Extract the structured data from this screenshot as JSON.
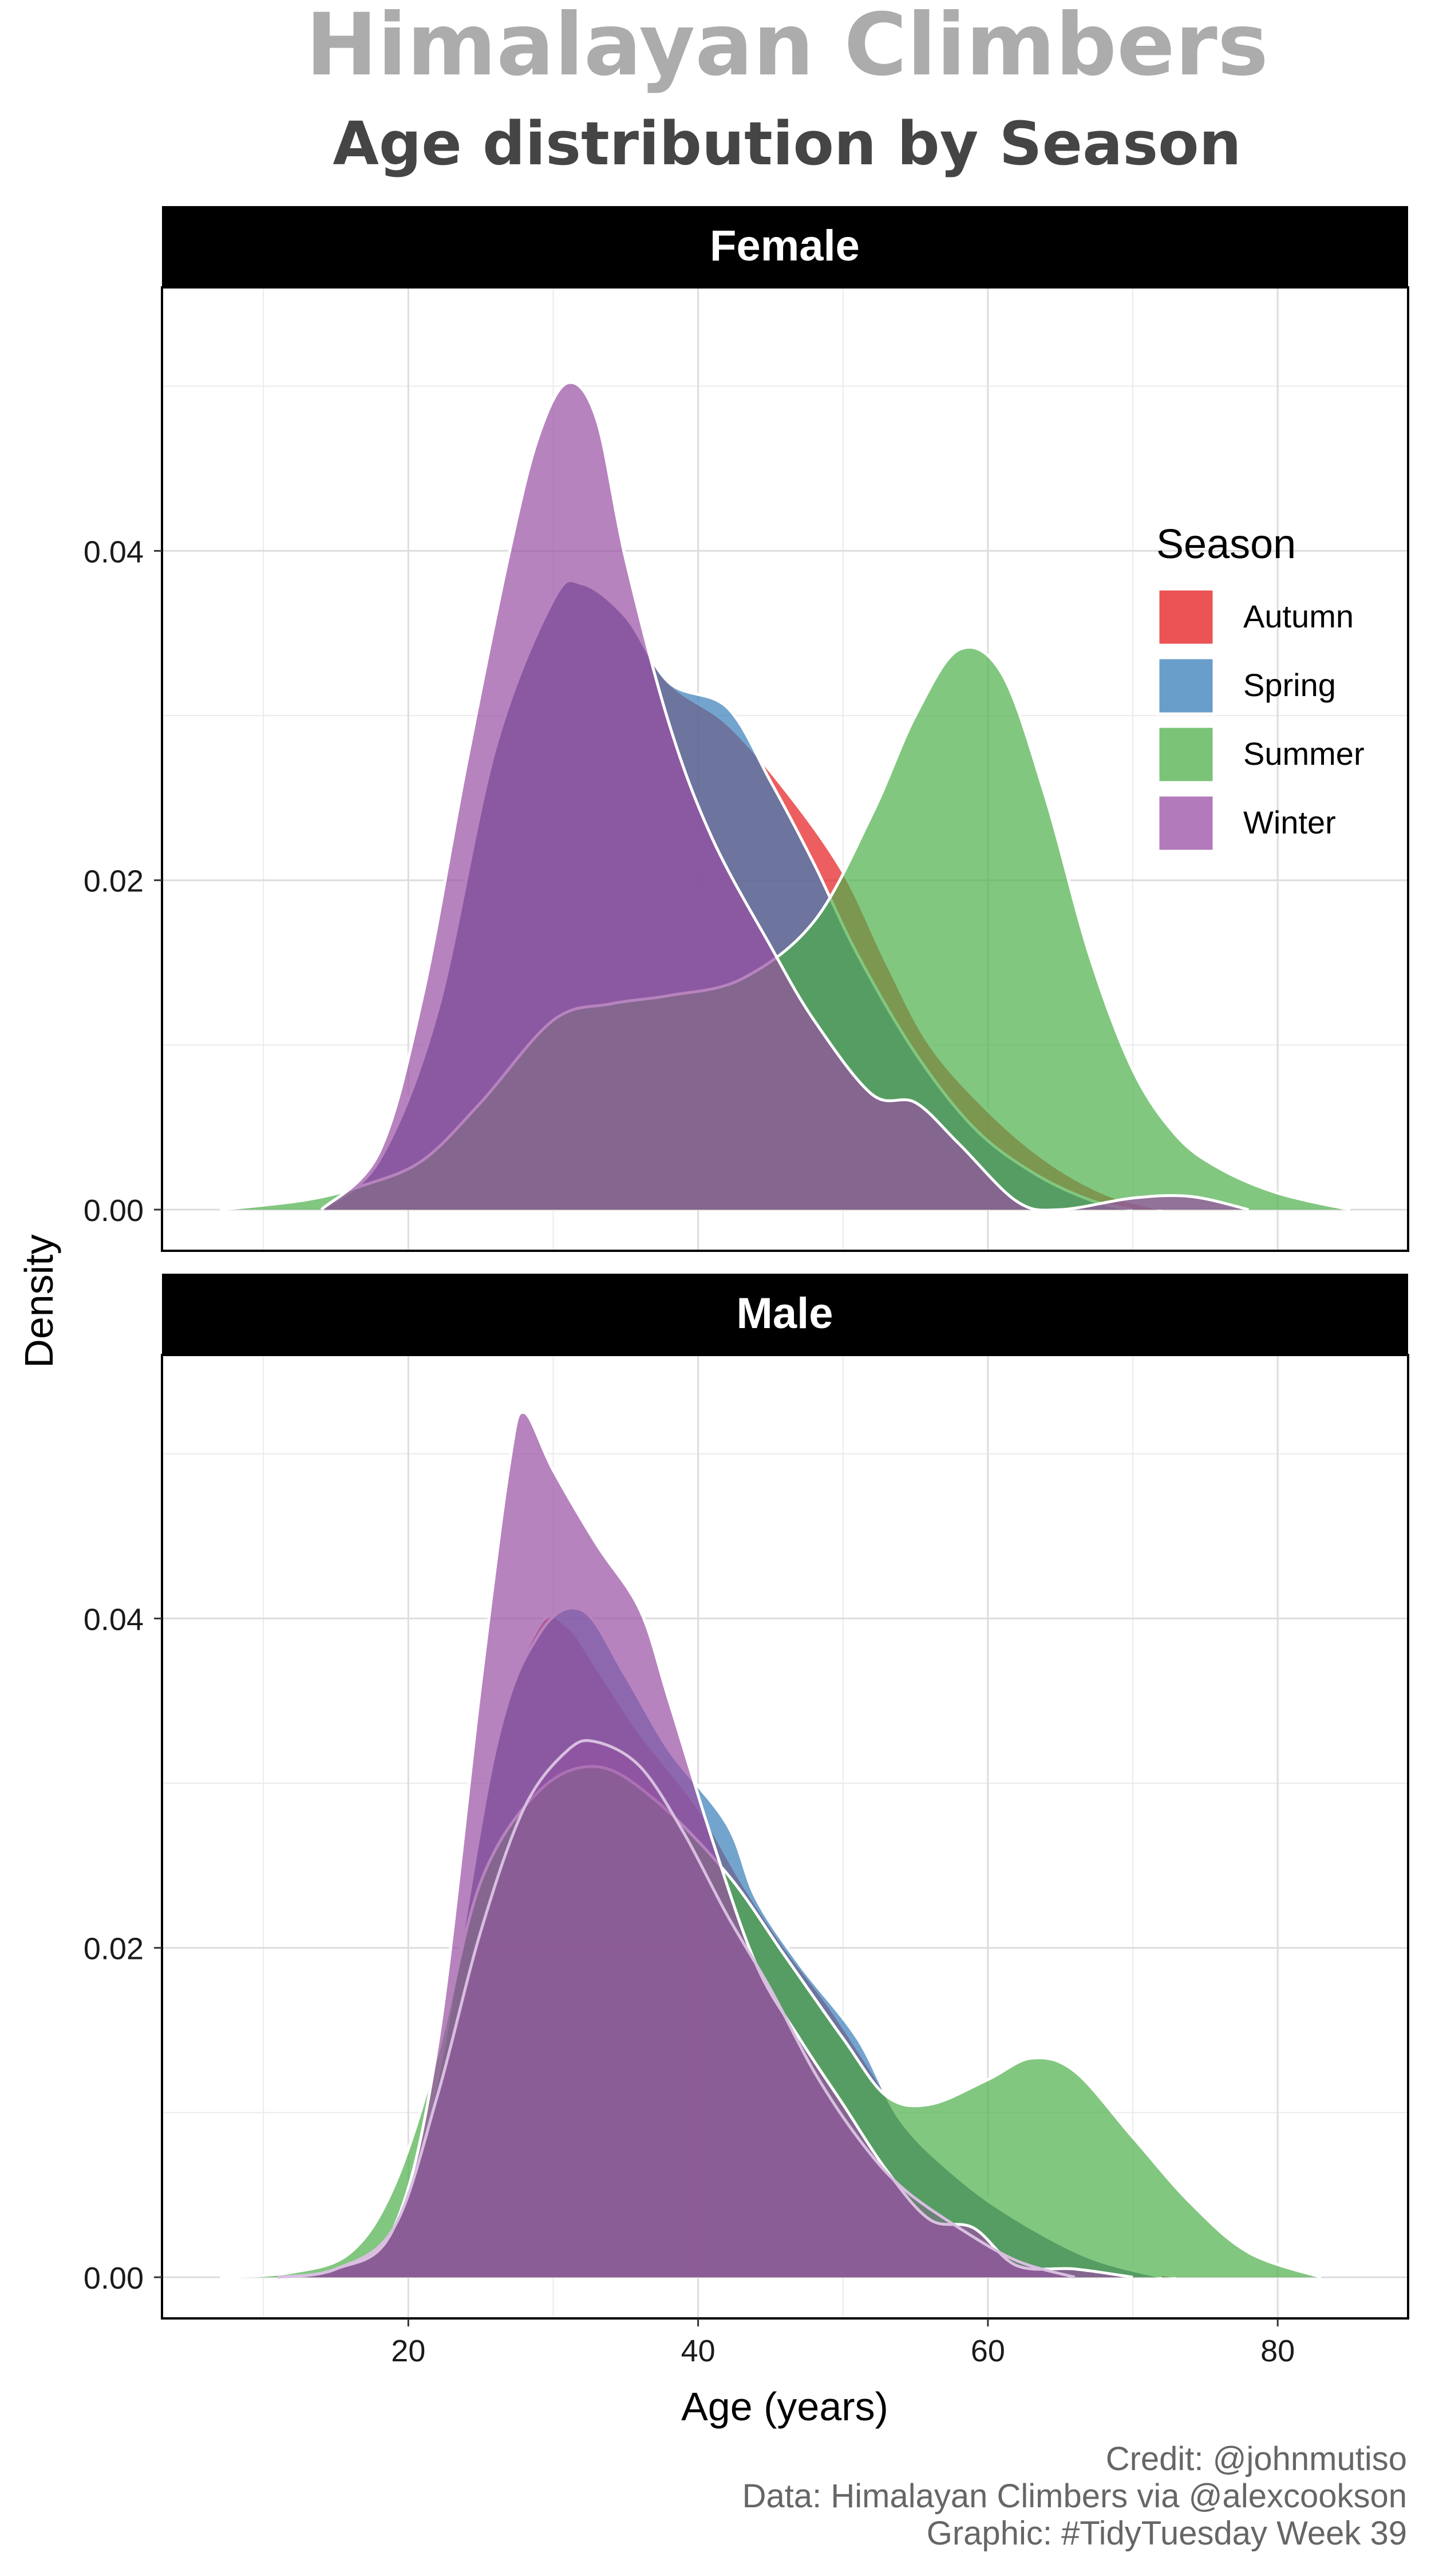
{
  "chart_data": {
    "type": "area",
    "title": "Himalayan Climbers",
    "subtitle": "Age distribution by Season",
    "xlabel": "Age (years)",
    "ylabel": "Density",
    "xlim": [
      3,
      89
    ],
    "x_ticks": [
      "20",
      "40",
      "60",
      "80"
    ],
    "y_ticks": [
      "0.00",
      "0.02",
      "0.04"
    ],
    "grid": true,
    "legend": {
      "title": "Season",
      "placement": "right-inside-top-facet",
      "entries": [
        "Autumn",
        "Spring",
        "Summer",
        "Winter"
      ]
    },
    "colors": {
      "Autumn": "#E41A1C",
      "Spring": "#377EB8",
      "Summer": "#4DAF4A",
      "Winter": "#984EA3"
    },
    "facets": [
      {
        "label": "Female",
        "ylim": [
          -0.0025,
          0.056
        ],
        "series": [
          {
            "name": "Autumn",
            "points": [
              [
                14,
                0
              ],
              [
                18,
                0.003
              ],
              [
                22,
                0.012
              ],
              [
                26,
                0.028
              ],
              [
                30,
                0.037
              ],
              [
                32,
                0.038
              ],
              [
                35,
                0.036
              ],
              [
                38,
                0.032
              ],
              [
                42,
                0.0295
              ],
              [
                46,
                0.0255
              ],
              [
                50,
                0.0205
              ],
              [
                53,
                0.015
              ],
              [
                56,
                0.01
              ],
              [
                60,
                0.006
              ],
              [
                64,
                0.003
              ],
              [
                68,
                0.001
              ],
              [
                72,
                0
              ]
            ]
          },
          {
            "name": "Spring",
            "points": [
              [
                14,
                0
              ],
              [
                18,
                0.003
              ],
              [
                22,
                0.012
              ],
              [
                26,
                0.028
              ],
              [
                30,
                0.037
              ],
              [
                32,
                0.038
              ],
              [
                35,
                0.036
              ],
              [
                38,
                0.032
              ],
              [
                42,
                0.0305
              ],
              [
                45,
                0.026
              ],
              [
                48,
                0.021
              ],
              [
                51,
                0.0155
              ],
              [
                55,
                0.0095
              ],
              [
                59,
                0.005
              ],
              [
                63,
                0.0023
              ],
              [
                67,
                0.0006
              ],
              [
                70,
                0
              ]
            ]
          },
          {
            "name": "Summer",
            "points": [
              [
                7,
                0
              ],
              [
                13,
                0.0006
              ],
              [
                17,
                0.0015
              ],
              [
                21,
                0.003
              ],
              [
                25,
                0.0065
              ],
              [
                30,
                0.0115
              ],
              [
                34,
                0.0125
              ],
              [
                38,
                0.013
              ],
              [
                43,
                0.014
              ],
              [
                48,
                0.0175
              ],
              [
                52,
                0.024
              ],
              [
                55,
                0.03
              ],
              [
                58,
                0.034
              ],
              [
                61,
                0.0325
              ],
              [
                64,
                0.025
              ],
              [
                67,
                0.0155
              ],
              [
                70,
                0.0085
              ],
              [
                73,
                0.0045
              ],
              [
                76,
                0.0025
              ],
              [
                80,
                0.001
              ],
              [
                85,
                0
              ]
            ]
          },
          {
            "name": "Winter",
            "points": [
              [
                14,
                0
              ],
              [
                18,
                0.0035
              ],
              [
                21,
                0.013
              ],
              [
                24,
                0.027
              ],
              [
                27,
                0.04
              ],
              [
                29,
                0.047
              ],
              [
                31,
                0.0502
              ],
              [
                33,
                0.048
              ],
              [
                35,
                0.0395
              ],
              [
                38,
                0.0295
              ],
              [
                41,
                0.0225
              ],
              [
                45,
                0.016
              ],
              [
                48,
                0.0115
              ],
              [
                52,
                0.007
              ],
              [
                55,
                0.0065
              ],
              [
                58,
                0.004
              ],
              [
                62,
                0.0005
              ],
              [
                65,
                0
              ],
              [
                70,
                0.0007
              ],
              [
                74,
                0.0008
              ],
              [
                78,
                0
              ]
            ]
          }
        ]
      },
      {
        "label": "Male",
        "ylim": [
          -0.0025,
          0.056
        ],
        "series": [
          {
            "name": "Autumn",
            "points": [
              [
                11,
                0
              ],
              [
                15,
                0.0005
              ],
              [
                19,
                0.003
              ],
              [
                22,
                0.012
              ],
              [
                26,
                0.032
              ],
              [
                29,
                0.0395
              ],
              [
                31,
                0.0395
              ],
              [
                33,
                0.037
              ],
              [
                36,
                0.033
              ],
              [
                40,
                0.0285
              ],
              [
                43,
                0.024
              ],
              [
                46,
                0.02
              ],
              [
                49,
                0.0165
              ],
              [
                52,
                0.0125
              ],
              [
                55,
                0.0085
              ],
              [
                59,
                0.0055
              ],
              [
                63,
                0.003
              ],
              [
                68,
                0.001
              ],
              [
                73,
                0
              ]
            ]
          },
          {
            "name": "Spring",
            "points": [
              [
                11,
                0
              ],
              [
                15,
                0.0005
              ],
              [
                19,
                0.003
              ],
              [
                22,
                0.012
              ],
              [
                26,
                0.032
              ],
              [
                29,
                0.039
              ],
              [
                32,
                0.0405
              ],
              [
                35,
                0.0365
              ],
              [
                38,
                0.032
              ],
              [
                42,
                0.0275
              ],
              [
                44,
                0.023
              ],
              [
                47,
                0.019
              ],
              [
                51,
                0.0145
              ],
              [
                54,
                0.0095
              ],
              [
                58,
                0.006
              ],
              [
                62,
                0.0035
              ],
              [
                67,
                0.0012
              ],
              [
                72,
                0
              ]
            ]
          },
          {
            "name": "Summer",
            "points": [
              [
                7,
                0
              ],
              [
                12,
                0.0003
              ],
              [
                16,
                0.0015
              ],
              [
                19,
                0.0055
              ],
              [
                22,
                0.0135
              ],
              [
                25,
                0.024
              ],
              [
                29,
                0.0295
              ],
              [
                33,
                0.031
              ],
              [
                37,
                0.029
              ],
              [
                42,
                0.0245
              ],
              [
                46,
                0.0195
              ],
              [
                50,
                0.0145
              ],
              [
                53,
                0.011
              ],
              [
                56,
                0.0105
              ],
              [
                60,
                0.012
              ],
              [
                63,
                0.0133
              ],
              [
                66,
                0.0125
              ],
              [
                70,
                0.0085
              ],
              [
                74,
                0.0045
              ],
              [
                78,
                0.0015
              ],
              [
                83,
                0
              ]
            ]
          },
          {
            "name": "Winter",
            "points": [
              [
                11,
                0
              ],
              [
                15,
                0.0005
              ],
              [
                19,
                0.003
              ],
              [
                22,
                0.014
              ],
              [
                25,
                0.036
              ],
              [
                27,
                0.0495
              ],
              [
                28,
                0.0525
              ],
              [
                30,
                0.049
              ],
              [
                33,
                0.0445
              ],
              [
                36,
                0.0405
              ],
              [
                38,
                0.035
              ],
              [
                41,
                0.0265
              ],
              [
                44,
                0.019
              ],
              [
                47,
                0.0145
              ],
              [
                50,
                0.0105
              ],
              [
                53,
                0.0065
              ],
              [
                56,
                0.0035
              ],
              [
                59,
                0.003
              ],
              [
                62,
                0.0007
              ],
              [
                66,
                0.0005
              ],
              [
                70,
                0
              ]
            ]
          },
          {
            "name": "Winter-pale",
            "points": [
              [
                11,
                0
              ],
              [
                15,
                0.0005
              ],
              [
                19,
                0.003
              ],
              [
                22,
                0.011
              ],
              [
                25,
                0.021
              ],
              [
                28,
                0.0285
              ],
              [
                31,
                0.032
              ],
              [
                33,
                0.0325
              ],
              [
                36,
                0.031
              ],
              [
                39,
                0.027
              ],
              [
                42,
                0.022
              ],
              [
                45,
                0.0175
              ],
              [
                48,
                0.0125
              ],
              [
                51,
                0.0085
              ],
              [
                54,
                0.0055
              ],
              [
                58,
                0.003
              ],
              [
                62,
                0.001
              ],
              [
                66,
                0
              ]
            ]
          }
        ]
      }
    ]
  },
  "credits": [
    "Credit: @johnmutiso",
    "Data: Himalayan Climbers via @alexcookson",
    "Graphic: #TidyTuesday Week 39"
  ]
}
